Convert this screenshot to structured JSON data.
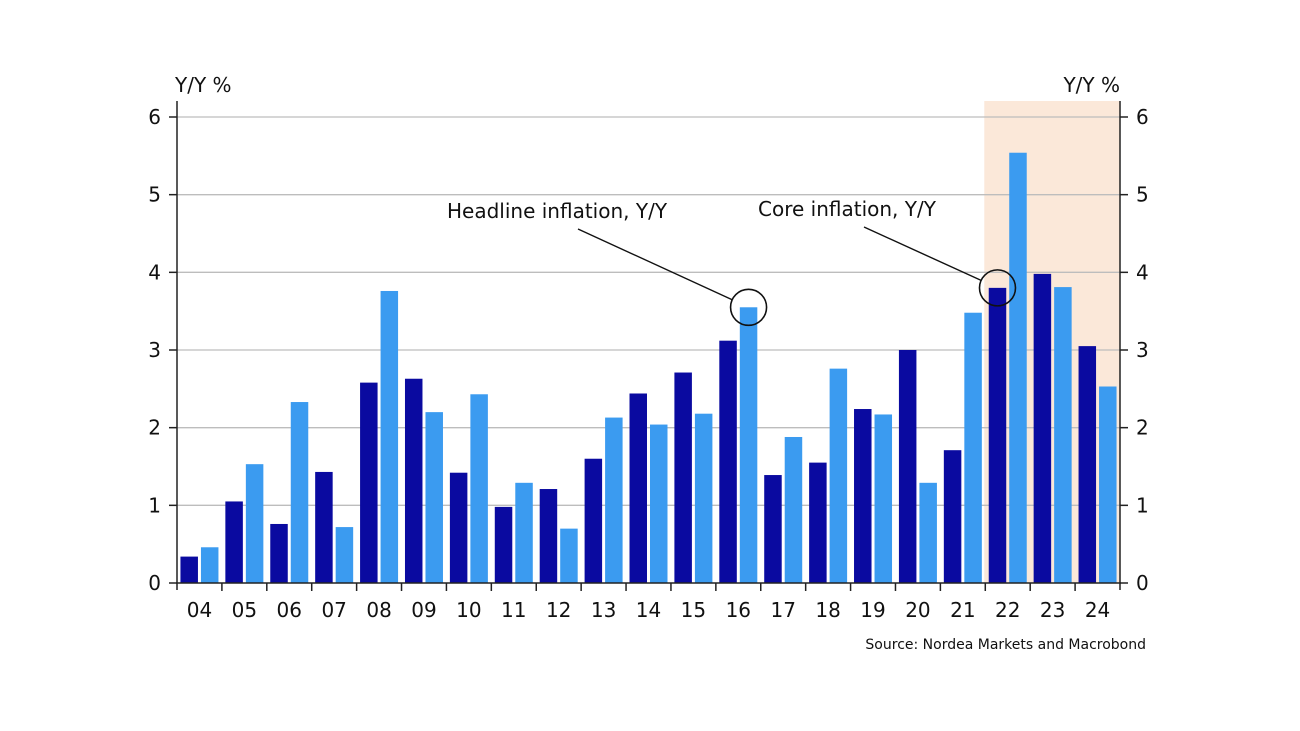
{
  "chart_data": {
    "type": "bar",
    "left_axis_label": "Y/Y %",
    "right_axis_label": "Y/Y %",
    "categories": [
      "04",
      "05",
      "06",
      "07",
      "08",
      "09",
      "10",
      "11",
      "12",
      "13",
      "14",
      "15",
      "16",
      "17",
      "18",
      "19",
      "20",
      "21",
      "22",
      "23",
      "24"
    ],
    "series": [
      {
        "color": "#0a0aa0",
        "values": [
          0.34,
          1.05,
          0.76,
          1.43,
          2.58,
          2.63,
          1.42,
          0.98,
          1.21,
          1.6,
          2.44,
          2.71,
          3.12,
          1.39,
          1.55,
          2.24,
          3.0,
          1.71,
          3.8,
          3.98,
          3.05
        ]
      },
      {
        "color": "#3b9bf0",
        "values": [
          0.46,
          1.53,
          2.33,
          0.72,
          3.76,
          2.2,
          2.43,
          1.29,
          0.7,
          2.13,
          2.04,
          2.18,
          3.55,
          1.88,
          2.76,
          2.17,
          1.29,
          3.48,
          5.54,
          3.81,
          2.53
        ]
      }
    ],
    "ylim": [
      0,
      6
    ],
    "yticks": [
      0,
      1,
      2,
      3,
      4,
      5,
      6
    ],
    "grid": true,
    "highlight": {
      "from_category": "22",
      "to_category": "24",
      "color": "#fbe8d9"
    },
    "annotations": [
      {
        "text": "Headline inflation, Y/Y",
        "category": "16",
        "series_index": 1
      },
      {
        "text": "Core inflation, Y/Y",
        "category": "22",
        "series_index": 0
      }
    ],
    "source": "Source: Nordea Markets and Macrobond"
  }
}
